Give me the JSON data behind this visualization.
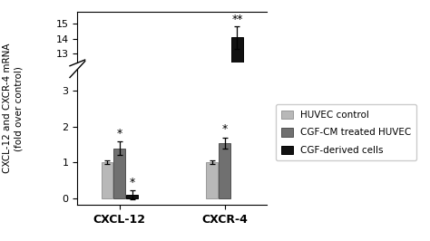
{
  "groups": [
    "CXCL-12",
    "CXCR-4"
  ],
  "series": [
    "HUVEC control",
    "CGF-CM treated HUVEC",
    "CGF-derived cells"
  ],
  "values": [
    [
      1.0,
      1.4,
      0.1
    ],
    [
      1.0,
      1.55,
      14.1
    ]
  ],
  "errors": [
    [
      0.05,
      0.18,
      0.12
    ],
    [
      0.05,
      0.15,
      0.75
    ]
  ],
  "bar_colors": [
    "#b8b8b8",
    "#707070",
    "#111111"
  ],
  "bar_edge_colors": [
    "#999999",
    "#505050",
    "#000000"
  ],
  "ylabel": "CXCL-12 and CXCR-4 mRNA\n(fold over control)",
  "legend_labels": [
    "HUVEC control",
    "CGF-CM treated HUVEC",
    "CGF-derived cells"
  ],
  "yticks_lower": [
    0,
    1,
    2,
    3
  ],
  "yticks_upper": [
    13,
    14,
    15
  ],
  "ylim_lower": [
    -0.18,
    3.6
  ],
  "ylim_upper": [
    12.4,
    15.8
  ],
  "break_threshold": 3.5,
  "background_color": "#ffffff",
  "bar_width": 0.18,
  "group_centers": [
    1.0,
    2.5
  ],
  "figsize": [
    4.74,
    2.66
  ],
  "dpi": 100
}
